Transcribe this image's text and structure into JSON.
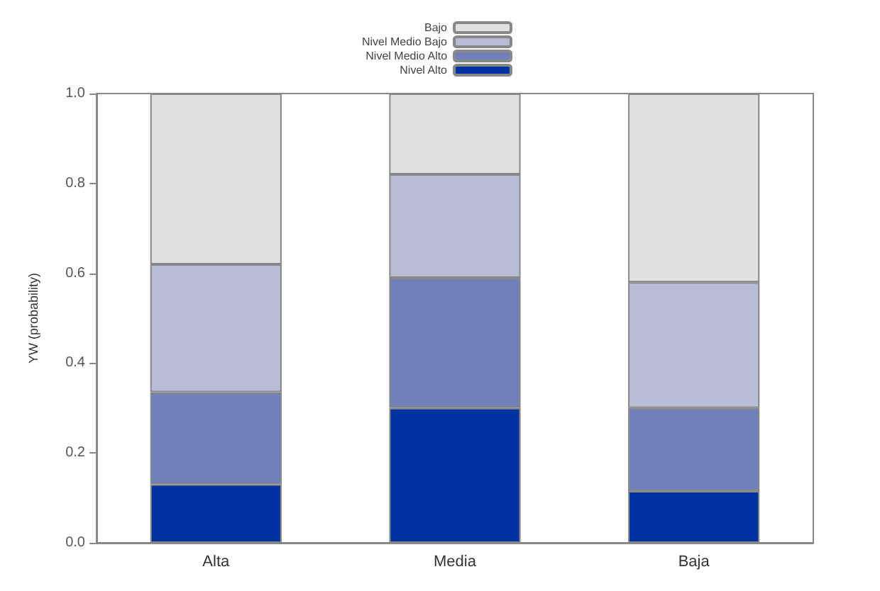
{
  "chart_data": {
    "type": "bar",
    "stacked": true,
    "ylabel": "YW (probability)",
    "categories": [
      "Alta",
      "Media",
      "Baja"
    ],
    "series": [
      {
        "name": "Nivel Alto",
        "color": "#0033a0",
        "values": [
          0.13,
          0.3,
          0.115
        ]
      },
      {
        "name": "Nivel Medio Alto",
        "color": "#7080b8",
        "values": [
          0.205,
          0.29,
          0.185
        ]
      },
      {
        "name": "Nivel Medio Bajo",
        "color": "#b8bcd6",
        "values": [
          0.285,
          0.23,
          0.28
        ]
      },
      {
        "name": "Bajo",
        "color": "#e0e0e0",
        "values": [
          0.38,
          0.18,
          0.42
        ]
      }
    ],
    "ylim": [
      0,
      1
    ],
    "yticks": [
      {
        "value": 0,
        "label": "0.0"
      },
      0.2,
      0.4,
      0.6,
      0.8,
      {
        "value": 1,
        "label": "1.0"
      }
    ],
    "grid": false,
    "legend": "top"
  }
}
